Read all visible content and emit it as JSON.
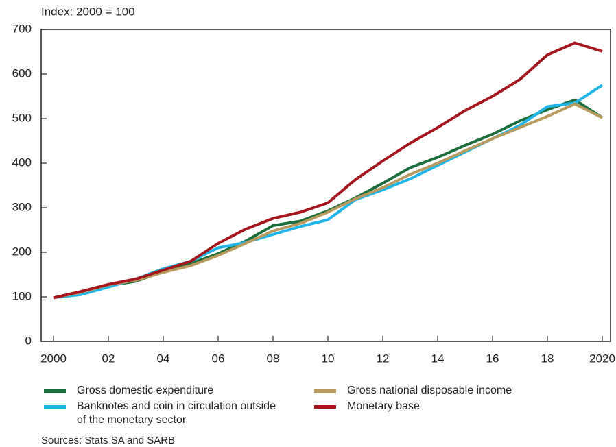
{
  "chart_data": {
    "type": "line",
    "y_label": "Index: 2000 = 100",
    "source": "Sources: Stats SA and SARB",
    "x": [
      2000,
      2001,
      2002,
      2003,
      2004,
      2005,
      2006,
      2007,
      2008,
      2009,
      2010,
      2011,
      2012,
      2013,
      2014,
      2015,
      2016,
      2017,
      2018,
      2019,
      2020
    ],
    "xlim": [
      1999.55,
      2020.3
    ],
    "xticks": [
      {
        "value": 2000,
        "label": "2000"
      },
      {
        "value": 2002,
        "label": "02"
      },
      {
        "value": 2004,
        "label": "04"
      },
      {
        "value": 2006,
        "label": "06"
      },
      {
        "value": 2008,
        "label": "08"
      },
      {
        "value": 2010,
        "label": "10"
      },
      {
        "value": 2012,
        "label": "12"
      },
      {
        "value": 2014,
        "label": "14"
      },
      {
        "value": 2016,
        "label": "16"
      },
      {
        "value": 2018,
        "label": "18"
      },
      {
        "value": 2020,
        "label": "2020"
      }
    ],
    "ylim": [
      0,
      700
    ],
    "yticks": [
      0,
      100,
      200,
      300,
      400,
      500,
      600,
      700
    ],
    "series": [
      {
        "name": "Gross domestic expenditure",
        "color": "#1a6e3c",
        "values": [
          98,
          110,
          125,
          135,
          157,
          175,
          197,
          225,
          260,
          270,
          293,
          322,
          355,
          390,
          413,
          440,
          465,
          495,
          520,
          542,
          502
        ]
      },
      {
        "name": "Banknotes and coin in circulation outside of the monetary sector",
        "color": "#1fb5e8",
        "values": [
          98,
          105,
          122,
          140,
          163,
          180,
          210,
          222,
          240,
          258,
          273,
          318,
          340,
          365,
          395,
          425,
          455,
          485,
          527,
          535,
          575
        ]
      },
      {
        "name": "Gross national disposable income",
        "color": "#b89a5e",
        "values": [
          98,
          110,
          127,
          137,
          155,
          170,
          193,
          220,
          248,
          265,
          290,
          320,
          345,
          375,
          400,
          428,
          455,
          480,
          505,
          533,
          502
        ]
      },
      {
        "name": "Monetary base",
        "color": "#a5161c",
        "values": [
          98,
          112,
          128,
          140,
          160,
          180,
          220,
          252,
          276,
          290,
          311,
          363,
          405,
          445,
          480,
          518,
          550,
          588,
          643,
          670,
          651
        ]
      }
    ]
  }
}
